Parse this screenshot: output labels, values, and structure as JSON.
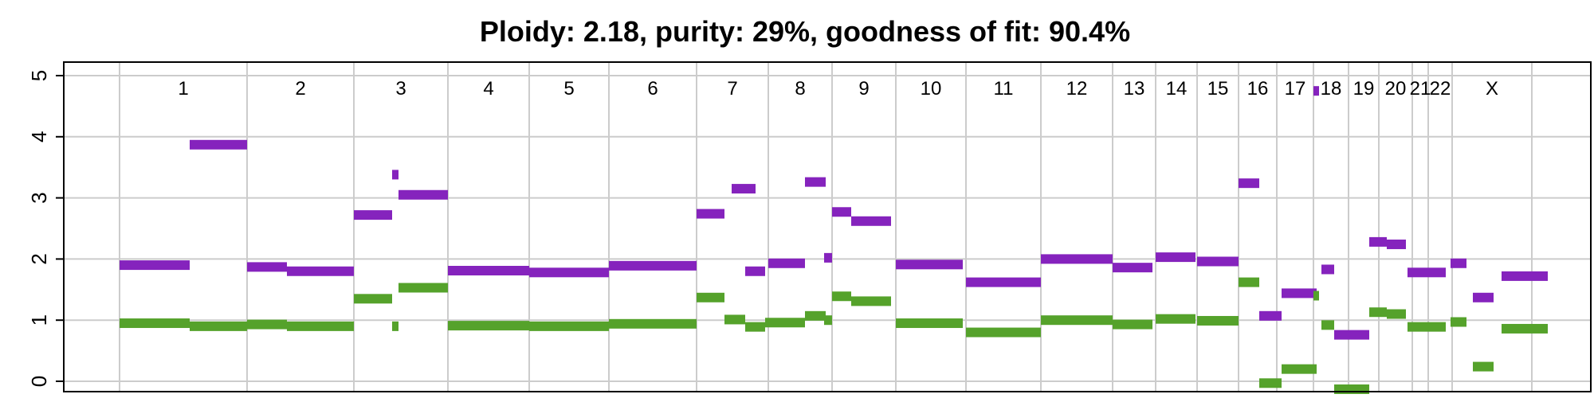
{
  "chart_data": {
    "type": "segment",
    "title": "Ploidy: 2.18, purity: 29%, goodness of fit: 90.4%",
    "xlabel": "",
    "ylabel": "",
    "ylim": [
      0,
      5
    ],
    "yticks": [
      "0",
      "1",
      "2",
      "3",
      "4",
      "5"
    ],
    "grid": true,
    "colors": {
      "total": "#8523bd",
      "minor": "#55a22b",
      "grid": "#cccccc"
    },
    "chromosomes": [
      {
        "name": "1",
        "start": 0,
        "end": 160
      },
      {
        "name": "2",
        "start": 160,
        "end": 294
      },
      {
        "name": "3",
        "start": 294,
        "end": 412
      },
      {
        "name": "4",
        "start": 412,
        "end": 514
      },
      {
        "name": "5",
        "start": 514,
        "end": 614
      },
      {
        "name": "6",
        "start": 614,
        "end": 724
      },
      {
        "name": "7",
        "start": 724,
        "end": 814
      },
      {
        "name": "8",
        "start": 814,
        "end": 894
      },
      {
        "name": "9",
        "start": 894,
        "end": 974
      },
      {
        "name": "10",
        "start": 974,
        "end": 1062
      },
      {
        "name": "11",
        "start": 1062,
        "end": 1156
      },
      {
        "name": "12",
        "start": 1156,
        "end": 1246
      },
      {
        "name": "13",
        "start": 1246,
        "end": 1300
      },
      {
        "name": "14",
        "start": 1300,
        "end": 1352
      },
      {
        "name": "15",
        "start": 1352,
        "end": 1404
      },
      {
        "name": "16",
        "start": 1404,
        "end": 1452
      },
      {
        "name": "17",
        "start": 1452,
        "end": 1498
      },
      {
        "name": "18",
        "start": 1498,
        "end": 1542
      },
      {
        "name": "19",
        "start": 1542,
        "end": 1580
      },
      {
        "name": "20",
        "start": 1580,
        "end": 1622
      },
      {
        "name": "21",
        "start": 1622,
        "end": 1642
      },
      {
        "name": "22",
        "start": 1642,
        "end": 1672
      },
      {
        "name": "X",
        "start": 1672,
        "end": 1772
      }
    ],
    "series": [
      {
        "role": "total",
        "segments": [
          {
            "start": 0,
            "end": 88,
            "value": 1.9
          },
          {
            "start": 88,
            "end": 160,
            "value": 3.87
          },
          {
            "start": 160,
            "end": 210,
            "value": 1.87
          },
          {
            "start": 210,
            "end": 294,
            "value": 1.8
          },
          {
            "start": 294,
            "end": 342,
            "value": 2.72
          },
          {
            "start": 342,
            "end": 350,
            "value": 3.38
          },
          {
            "start": 350,
            "end": 412,
            "value": 3.05
          },
          {
            "start": 412,
            "end": 514,
            "value": 1.81
          },
          {
            "start": 514,
            "end": 614,
            "value": 1.78
          },
          {
            "start": 614,
            "end": 724,
            "value": 1.89
          },
          {
            "start": 724,
            "end": 759,
            "value": 2.74
          },
          {
            "start": 768,
            "end": 798,
            "value": 3.15
          },
          {
            "start": 785,
            "end": 810,
            "value": 1.8
          },
          {
            "start": 814,
            "end": 860,
            "value": 1.93
          },
          {
            "start": 860,
            "end": 886,
            "value": 3.26
          },
          {
            "start": 884,
            "end": 894,
            "value": 2.02
          },
          {
            "start": 894,
            "end": 918,
            "value": 2.77
          },
          {
            "start": 918,
            "end": 968,
            "value": 2.62
          },
          {
            "start": 974,
            "end": 1058,
            "value": 1.91
          },
          {
            "start": 1062,
            "end": 1156,
            "value": 1.62
          },
          {
            "start": 1156,
            "end": 1246,
            "value": 2.0
          },
          {
            "start": 1246,
            "end": 1296,
            "value": 1.86
          },
          {
            "start": 1300,
            "end": 1350,
            "value": 2.03
          },
          {
            "start": 1352,
            "end": 1404,
            "value": 1.96
          },
          {
            "start": 1404,
            "end": 1430,
            "value": 3.24
          },
          {
            "start": 1430,
            "end": 1458,
            "value": 1.07
          },
          {
            "start": 1458,
            "end": 1502,
            "value": 1.44
          },
          {
            "start": 1498,
            "end": 1505,
            "value": 4.75
          },
          {
            "start": 1508,
            "end": 1524,
            "value": 1.83
          },
          {
            "start": 1524,
            "end": 1568,
            "value": 0.76
          },
          {
            "start": 1568,
            "end": 1590,
            "value": 2.28
          },
          {
            "start": 1590,
            "end": 1614,
            "value": 2.24
          },
          {
            "start": 1616,
            "end": 1664,
            "value": 1.78
          },
          {
            "start": 1670,
            "end": 1690,
            "value": 1.93
          },
          {
            "start": 1698,
            "end": 1724,
            "value": 1.37
          },
          {
            "start": 1734,
            "end": 1792,
            "value": 1.72
          }
        ]
      },
      {
        "role": "minor",
        "segments": [
          {
            "start": 0,
            "end": 88,
            "value": 0.95
          },
          {
            "start": 88,
            "end": 160,
            "value": 0.9
          },
          {
            "start": 160,
            "end": 210,
            "value": 0.93
          },
          {
            "start": 210,
            "end": 294,
            "value": 0.9
          },
          {
            "start": 294,
            "end": 342,
            "value": 1.35
          },
          {
            "start": 342,
            "end": 350,
            "value": 0.9
          },
          {
            "start": 350,
            "end": 412,
            "value": 1.53
          },
          {
            "start": 412,
            "end": 514,
            "value": 0.91
          },
          {
            "start": 514,
            "end": 614,
            "value": 0.9
          },
          {
            "start": 614,
            "end": 724,
            "value": 0.94
          },
          {
            "start": 724,
            "end": 759,
            "value": 1.37
          },
          {
            "start": 759,
            "end": 785,
            "value": 1.01
          },
          {
            "start": 785,
            "end": 810,
            "value": 0.89
          },
          {
            "start": 810,
            "end": 860,
            "value": 0.96
          },
          {
            "start": 860,
            "end": 886,
            "value": 1.07
          },
          {
            "start": 884,
            "end": 894,
            "value": 1.0
          },
          {
            "start": 894,
            "end": 918,
            "value": 1.39
          },
          {
            "start": 918,
            "end": 968,
            "value": 1.31
          },
          {
            "start": 974,
            "end": 1058,
            "value": 0.95
          },
          {
            "start": 1062,
            "end": 1156,
            "value": 0.8
          },
          {
            "start": 1156,
            "end": 1246,
            "value": 1.0
          },
          {
            "start": 1246,
            "end": 1296,
            "value": 0.93
          },
          {
            "start": 1300,
            "end": 1350,
            "value": 1.02
          },
          {
            "start": 1352,
            "end": 1404,
            "value": 0.99
          },
          {
            "start": 1404,
            "end": 1430,
            "value": 1.62
          },
          {
            "start": 1430,
            "end": 1458,
            "value": -0.03
          },
          {
            "start": 1458,
            "end": 1502,
            "value": 0.2
          },
          {
            "start": 1498,
            "end": 1505,
            "value": 1.4
          },
          {
            "start": 1508,
            "end": 1524,
            "value": 0.92
          },
          {
            "start": 1524,
            "end": 1568,
            "value": -0.13
          },
          {
            "start": 1568,
            "end": 1590,
            "value": 1.13
          },
          {
            "start": 1590,
            "end": 1614,
            "value": 1.1
          },
          {
            "start": 1616,
            "end": 1664,
            "value": 0.89
          },
          {
            "start": 1670,
            "end": 1690,
            "value": 0.97
          },
          {
            "start": 1698,
            "end": 1724,
            "value": 0.24
          },
          {
            "start": 1734,
            "end": 1792,
            "value": 0.86
          }
        ]
      }
    ]
  }
}
